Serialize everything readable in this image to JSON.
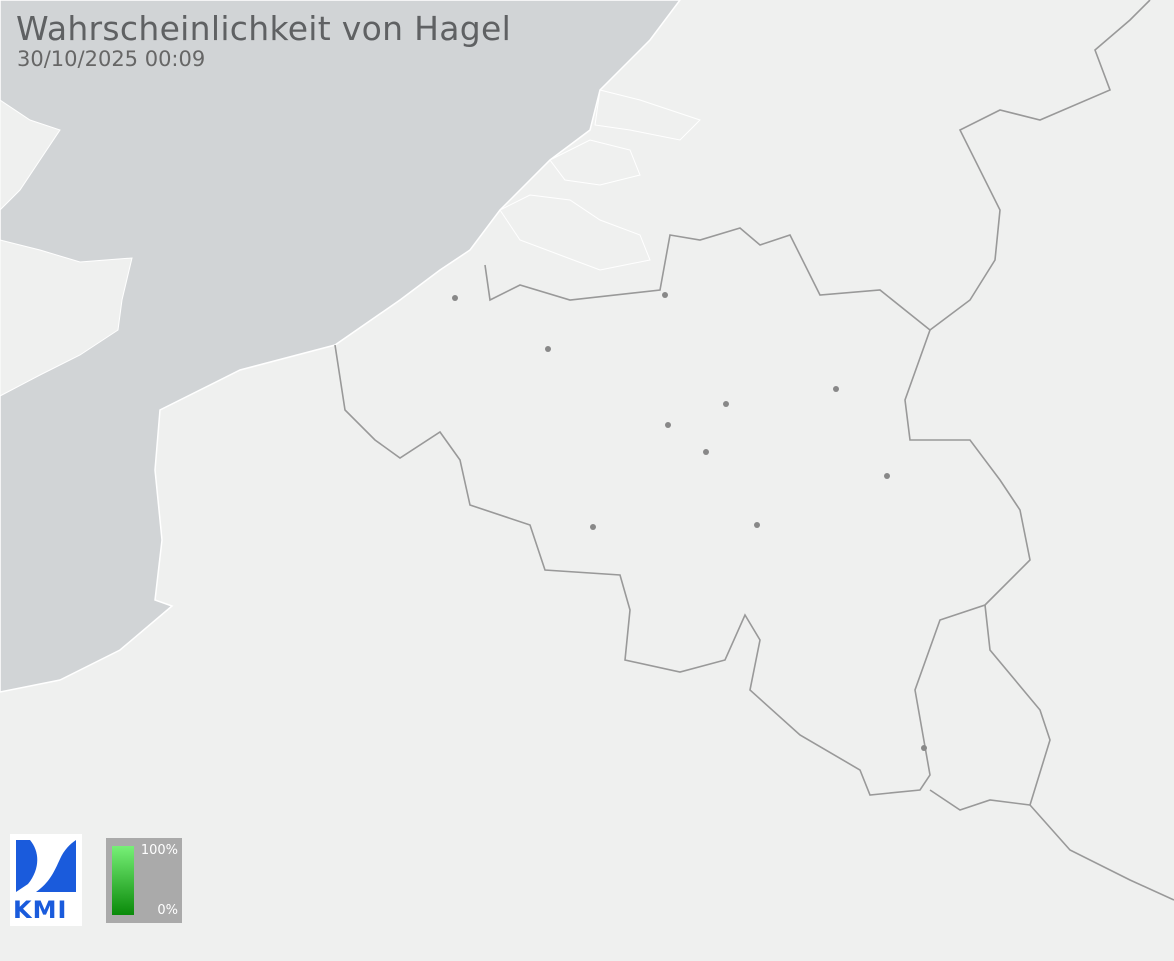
{
  "header": {
    "title": "Wahrscheinlichkeit von Hagel",
    "timestamp": "30/10/2025 00:09"
  },
  "logo": {
    "text": "KMI",
    "color": "#1a5bdc"
  },
  "legend": {
    "max_label": "100%",
    "min_label": "0%",
    "color_high": "#77f077",
    "color_low": "#0a8a0a"
  },
  "map": {
    "sea_color": "#d1d4d6",
    "land_color": "#eff0ef",
    "border_color": "#999999",
    "hail_probability_shown": 0
  }
}
